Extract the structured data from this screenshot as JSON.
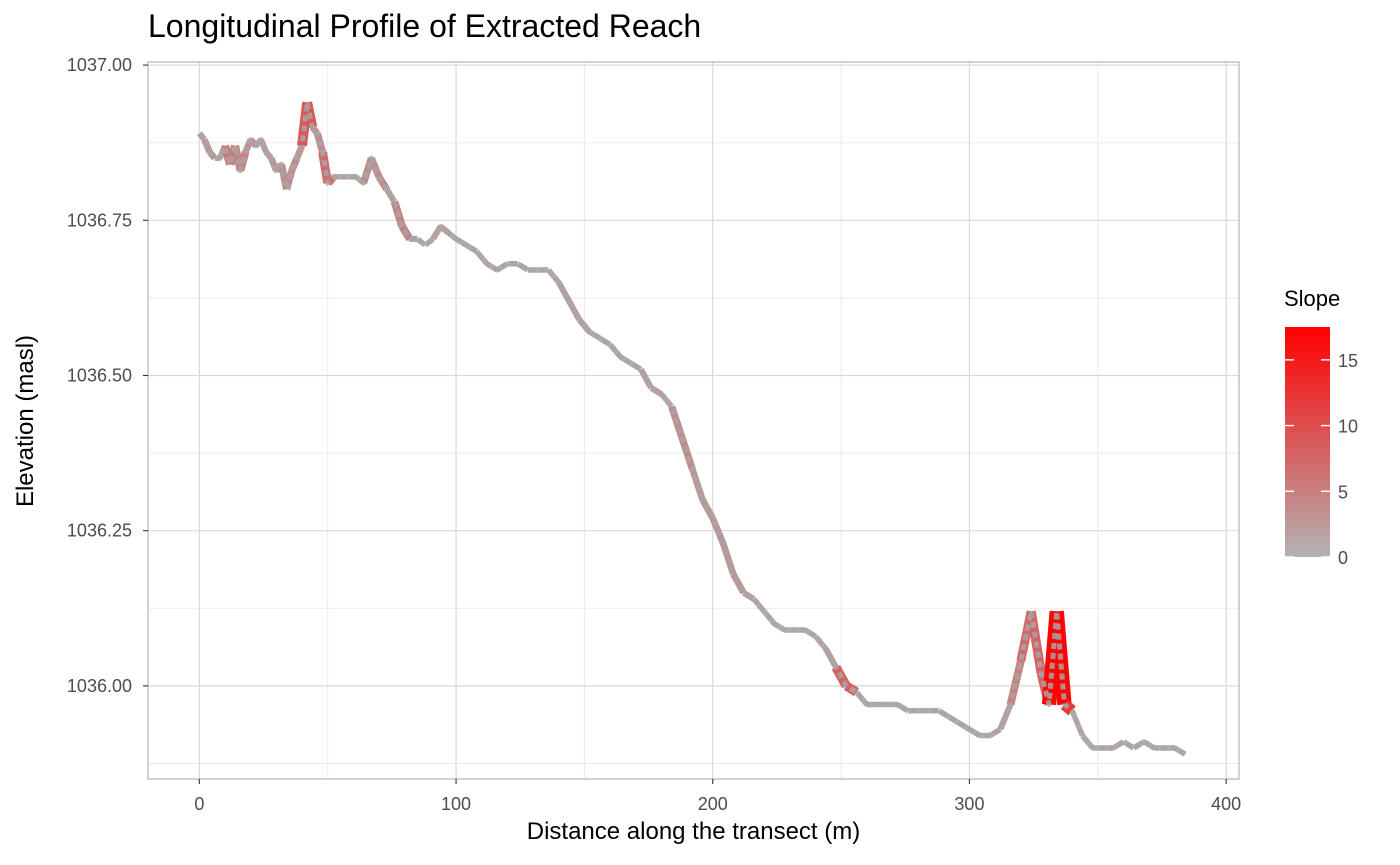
{
  "chart_data": {
    "type": "line",
    "title": "Longitudinal Profile of Extracted Reach",
    "xlabel": "Distance along the transect (m)",
    "ylabel": "Elevation (masl)",
    "xlim": [
      -20,
      405
    ],
    "ylim": [
      1035.85,
      1037.005
    ],
    "x_ticks": [
      0,
      100,
      200,
      300,
      400
    ],
    "x_tick_labels": [
      "0",
      "100",
      "200",
      "300",
      "400"
    ],
    "y_ticks": [
      1036.0,
      1036.25,
      1036.5,
      1036.75,
      1037.0
    ],
    "y_tick_labels": [
      "1036.00",
      "1036.25",
      "1036.50",
      "1036.75",
      "1037.00"
    ],
    "grid": true,
    "legend": {
      "title": "Slope",
      "position": "right",
      "type": "gradient",
      "range": [
        0,
        17.5
      ],
      "breaks": [
        0,
        5,
        10,
        15
      ],
      "break_labels": [
        "0",
        "5",
        "10",
        "15"
      ],
      "low_color": "#b3b3b3",
      "high_color": "#ff0000"
    },
    "series": [
      {
        "x": [
          0,
          2,
          4,
          6,
          8,
          10,
          12,
          14,
          16,
          18,
          20,
          22,
          24,
          26,
          28,
          30,
          32,
          34,
          36,
          38,
          40,
          42,
          44,
          46,
          48,
          50,
          52,
          55,
          58,
          61,
          64,
          67,
          70,
          73,
          76,
          79,
          82,
          85,
          88,
          91,
          94,
          97,
          100,
          104,
          108,
          112,
          116,
          120,
          124,
          128,
          132,
          136,
          140,
          144,
          148,
          152,
          156,
          160,
          164,
          168,
          172,
          176,
          180,
          184,
          188,
          192,
          196,
          200,
          204,
          208,
          212,
          216,
          220,
          224,
          228,
          232,
          236,
          240,
          244,
          248,
          252,
          256,
          260,
          264,
          268,
          272,
          276,
          280,
          284,
          288,
          292,
          296,
          300,
          304,
          308,
          312,
          316,
          320,
          324,
          328,
          331,
          334,
          337,
          340,
          344,
          348,
          352,
          356,
          360,
          364,
          368,
          372,
          376,
          380,
          384
        ],
        "y": [
          1036.89,
          1036.88,
          1036.86,
          1036.85,
          1036.85,
          1036.87,
          1036.84,
          1036.87,
          1036.83,
          1036.86,
          1036.88,
          1036.87,
          1036.88,
          1036.86,
          1036.85,
          1036.83,
          1036.84,
          1036.8,
          1036.83,
          1036.85,
          1036.87,
          1036.94,
          1036.9,
          1036.89,
          1036.86,
          1036.81,
          1036.82,
          1036.82,
          1036.82,
          1036.82,
          1036.81,
          1036.85,
          1036.82,
          1036.8,
          1036.78,
          1036.74,
          1036.72,
          1036.72,
          1036.71,
          1036.72,
          1036.74,
          1036.73,
          1036.72,
          1036.71,
          1036.7,
          1036.68,
          1036.67,
          1036.68,
          1036.68,
          1036.67,
          1036.67,
          1036.67,
          1036.65,
          1036.62,
          1036.59,
          1036.57,
          1036.56,
          1036.55,
          1036.53,
          1036.52,
          1036.51,
          1036.48,
          1036.47,
          1036.45,
          1036.4,
          1036.35,
          1036.3,
          1036.27,
          1036.23,
          1036.18,
          1036.15,
          1036.14,
          1036.12,
          1036.1,
          1036.09,
          1036.09,
          1036.09,
          1036.08,
          1036.06,
          1036.03,
          1036.0,
          1035.99,
          1035.97,
          1035.97,
          1035.97,
          1035.97,
          1035.96,
          1035.96,
          1035.96,
          1035.96,
          1035.95,
          1035.94,
          1035.93,
          1035.92,
          1035.92,
          1035.93,
          1035.97,
          1036.04,
          1036.12,
          1036.02,
          1035.97,
          1036.12,
          1035.97,
          1035.96,
          1035.92,
          1035.9,
          1035.9,
          1035.9,
          1035.91,
          1035.9,
          1035.91,
          1035.9,
          1035.9,
          1035.9,
          1035.89
        ],
        "slope": [
          1,
          2,
          3,
          1,
          1,
          2,
          6,
          4,
          5,
          3,
          3,
          1,
          2,
          2,
          2,
          3,
          1,
          4,
          4,
          3,
          3,
          9,
          3,
          1,
          4,
          7,
          1,
          1,
          1,
          1,
          1,
          4,
          4,
          2,
          2,
          5,
          2,
          1,
          1,
          1,
          2,
          1,
          1,
          1,
          1,
          1,
          1,
          1,
          1,
          1,
          1,
          1,
          1,
          2,
          2,
          1,
          1,
          1,
          1,
          1,
          1,
          2,
          1,
          1,
          4,
          3,
          3,
          2,
          3,
          3,
          2,
          1,
          1,
          1,
          1,
          1,
          1,
          1,
          1,
          2,
          8,
          1,
          1,
          1,
          1,
          1,
          1,
          1,
          1,
          1,
          1,
          1,
          1,
          1,
          1,
          1,
          2,
          5,
          7,
          8,
          4,
          17,
          12,
          1,
          1,
          1,
          1,
          1,
          1,
          1,
          1,
          1,
          1,
          1,
          1
        ]
      }
    ]
  }
}
